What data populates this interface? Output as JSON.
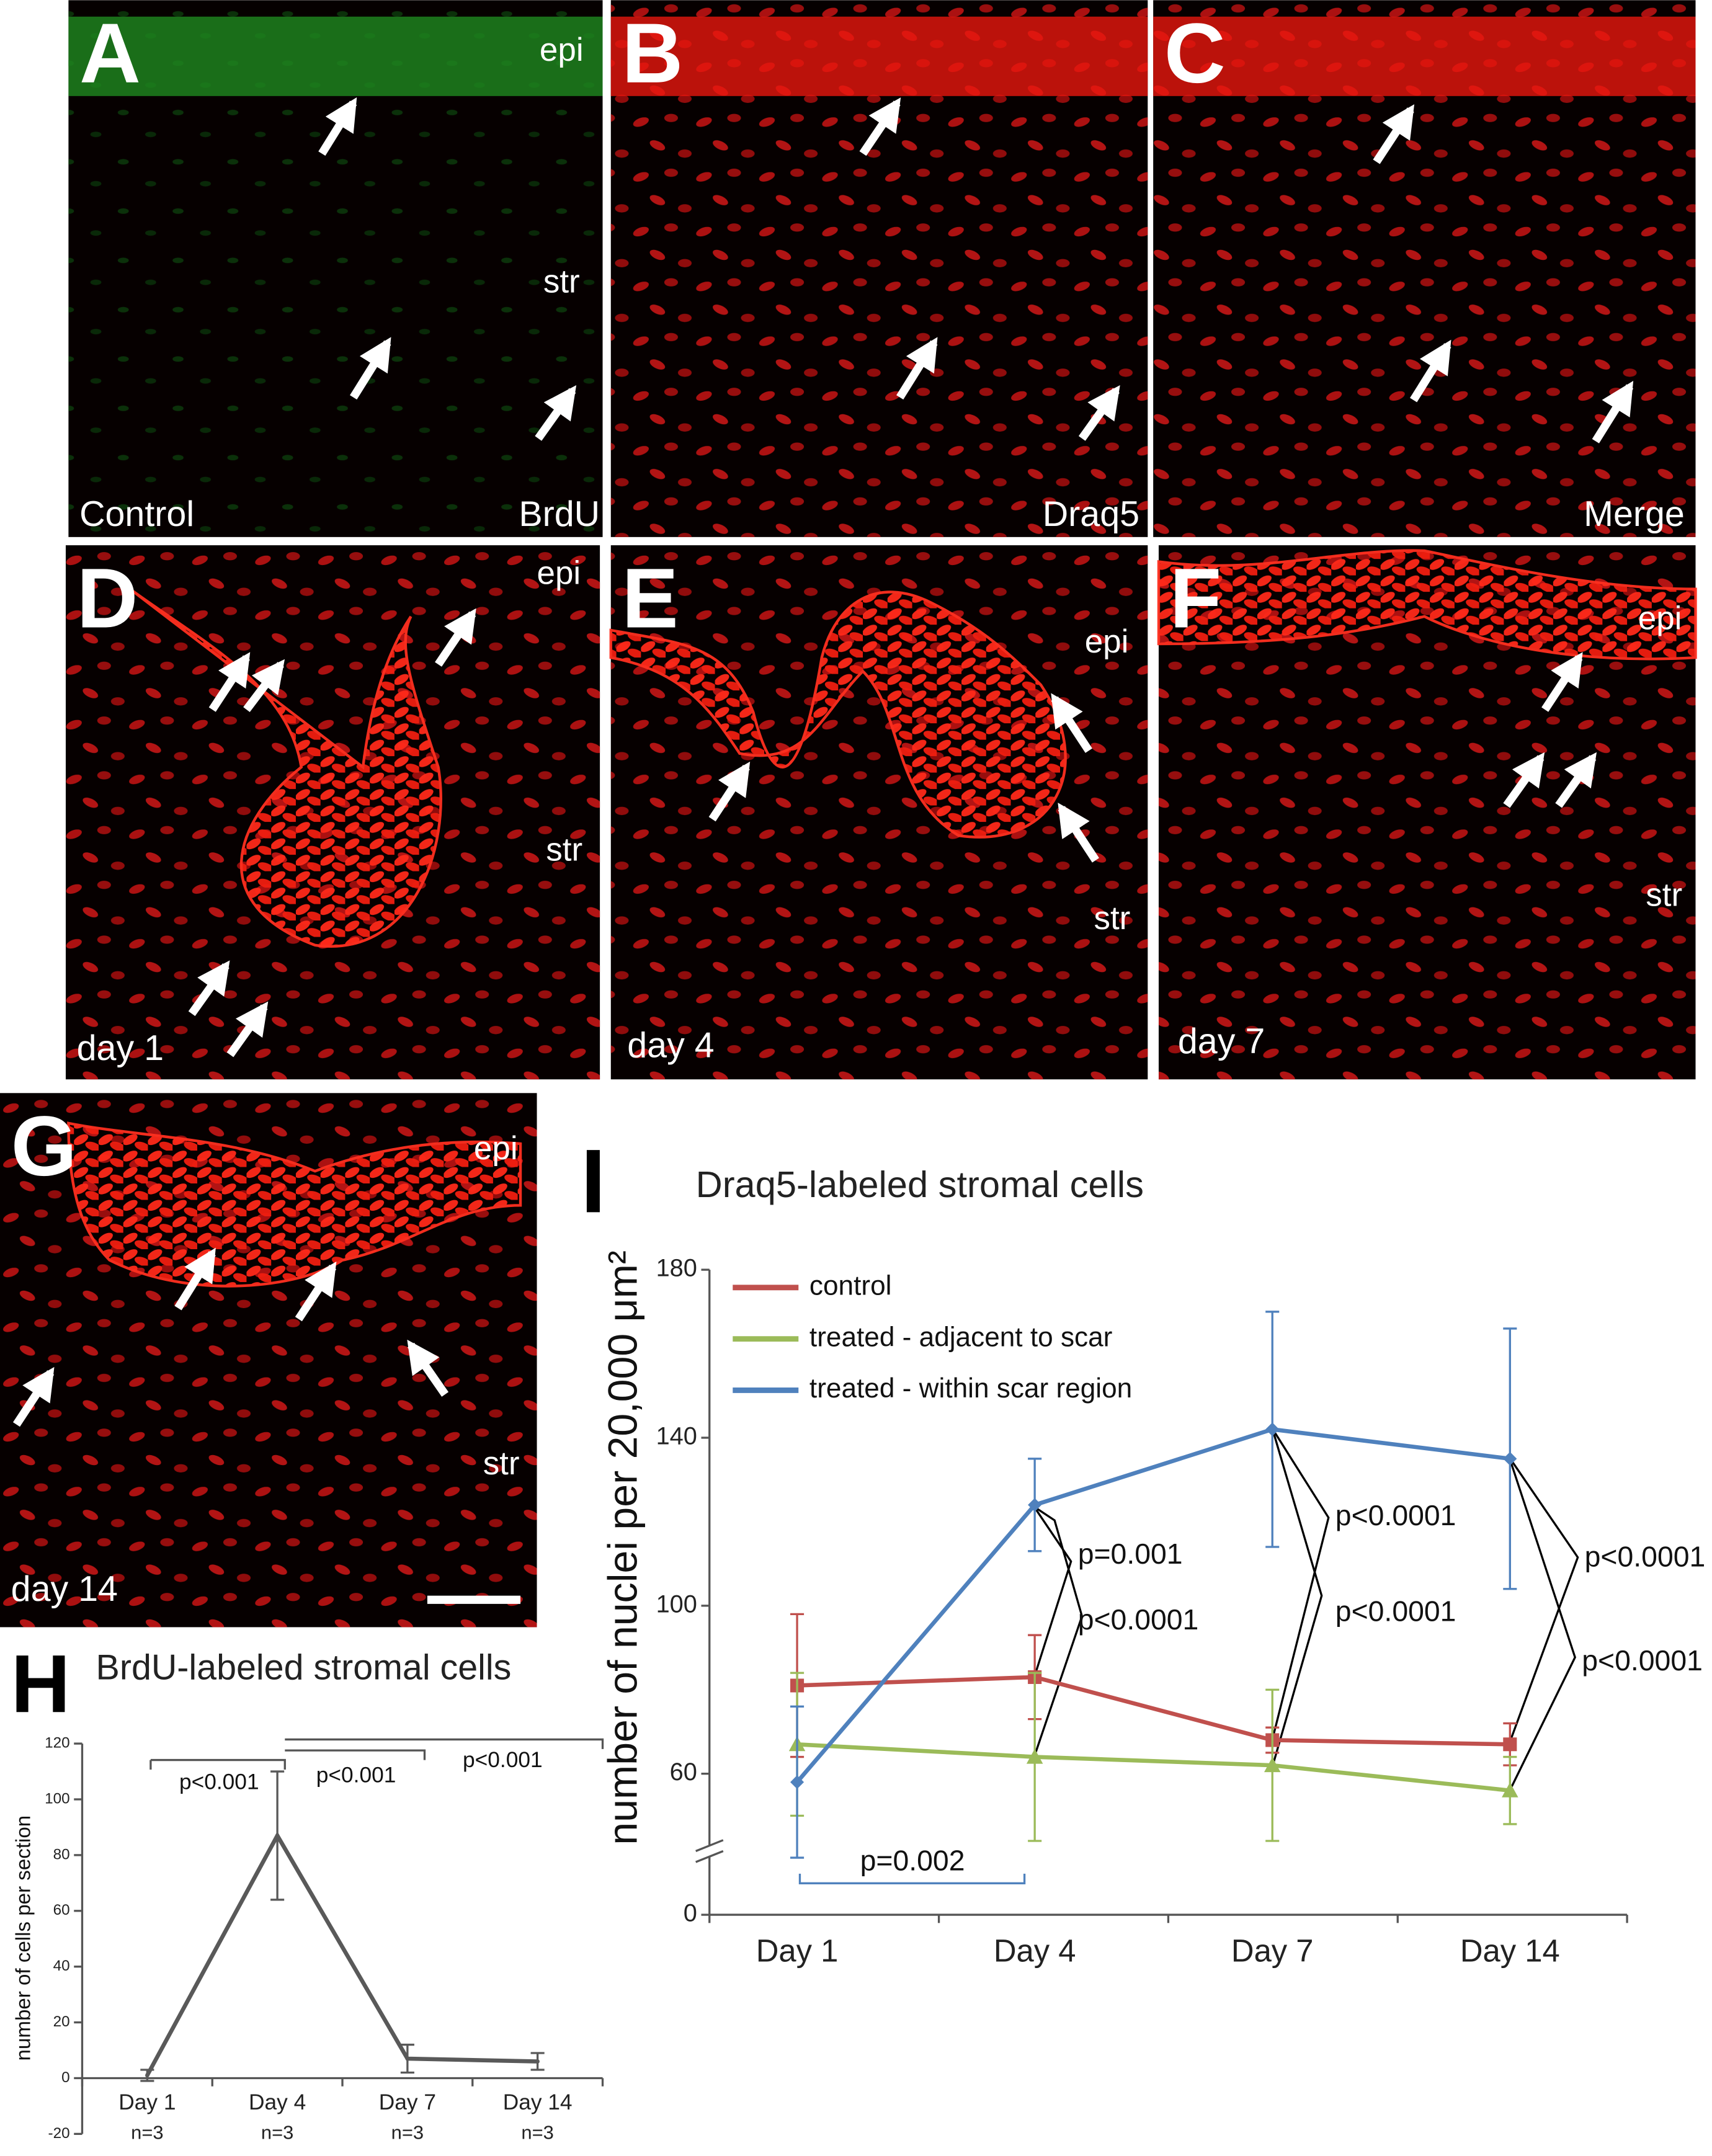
{
  "panels": [
    {
      "letter": "A",
      "top_right": "epi",
      "mid_right": "str",
      "bottom_left": "Control",
      "bottom_right": "BrdU"
    },
    {
      "letter": "B",
      "bottom_right": "Draq5"
    },
    {
      "letter": "C",
      "bottom_right": "Merge"
    },
    {
      "letter": "D",
      "top_right": "epi",
      "mid_right": "str",
      "bottom_left": "day 1"
    },
    {
      "letter": "E",
      "top_right": "epi",
      "mid_right": "str",
      "bottom_left": "day 4"
    },
    {
      "letter": "F",
      "top_right": "epi",
      "mid_right": "str",
      "bottom_left": "day 7"
    },
    {
      "letter": "G",
      "top_right": "epi",
      "mid_right": "str",
      "bottom_left": "day 14"
    }
  ],
  "chart_data": [
    {
      "type": "line",
      "panel_label": "H",
      "title": "BrdU-labeled stromal cells",
      "y_label": "number of cells per section",
      "categories": [
        "Day 1",
        "Day 4",
        "Day 7",
        "Day 14"
      ],
      "sample_sizes": [
        "n=3",
        "n=3",
        "n=3",
        "n=3"
      ],
      "series": [
        {
          "color": "#595959",
          "values": [
            1,
            87,
            7,
            6
          ],
          "errors": [
            2,
            23,
            5,
            3
          ]
        }
      ],
      "ylim": [
        -20,
        120
      ],
      "yticks": [
        -20,
        0,
        20,
        40,
        60,
        80,
        100,
        120
      ],
      "annotations": [
        "p<0.001",
        "p<0.001",
        "p<0.001"
      ]
    },
    {
      "type": "line",
      "panel_label": "I",
      "title": "Draq5-labeled stromal cells",
      "y_label": "number of nuclei per 20,000 μm²",
      "categories": [
        "Day 1",
        "Day 4",
        "Day 7",
        "Day 14"
      ],
      "series": [
        {
          "name": "control",
          "color": "#c0504d",
          "marker": "square",
          "values": [
            81,
            83,
            68,
            67
          ],
          "errors": [
            17,
            10,
            3,
            5
          ]
        },
        {
          "name": "treated - adjacent to scar",
          "color": "#9bbb59",
          "marker": "triangle",
          "values": [
            67,
            64,
            62,
            56
          ],
          "errors": [
            17,
            20,
            18,
            8
          ]
        },
        {
          "name": "treated - within scar region",
          "color": "#4f81bd",
          "marker": "diamond",
          "values": [
            58,
            124,
            142,
            135
          ],
          "errors": [
            18,
            11,
            28,
            31
          ]
        }
      ],
      "ylim": [
        0,
        180
      ],
      "yticks": [
        0,
        60,
        100,
        140,
        180
      ],
      "axis_break": true,
      "legend": "upper left",
      "annotations": [
        "p=0.001",
        "p<0.0001",
        "p<0.0001",
        "p<0.0001",
        "p<0.0001",
        "p<0.0001",
        "p=0.002"
      ]
    }
  ]
}
